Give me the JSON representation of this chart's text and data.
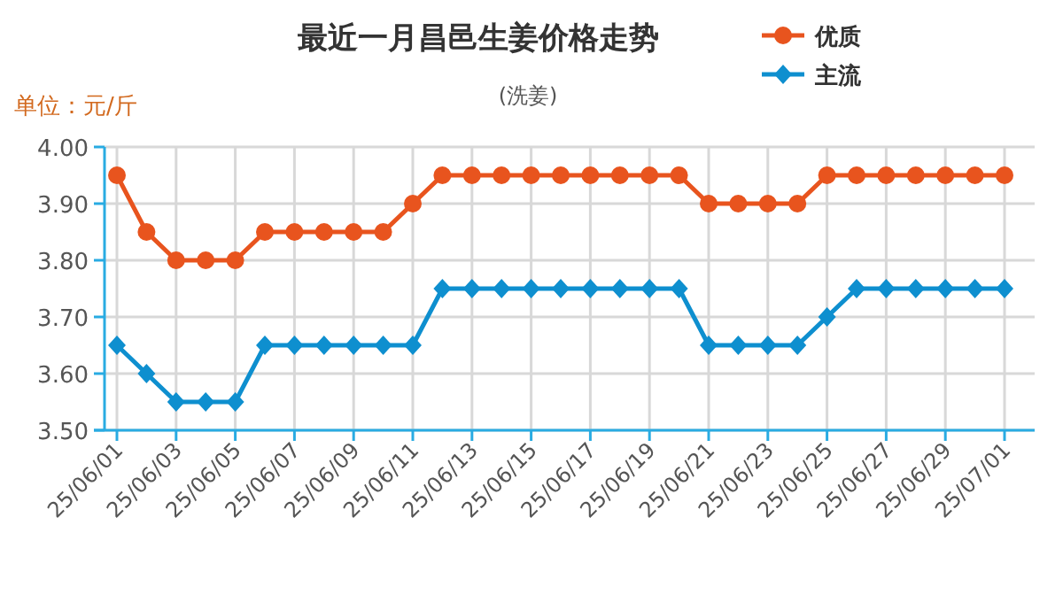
{
  "chart_data": {
    "type": "line",
    "title": "最近一月昌邑生姜价格走势",
    "subtitle": "(洗姜)",
    "annotations": [
      "单位：元/斤"
    ],
    "categories": [
      "25/06/01",
      null,
      "25/06/03",
      null,
      "25/06/05",
      null,
      "25/06/07",
      null,
      "25/06/09",
      null,
      "25/06/11",
      null,
      "25/06/13",
      null,
      "25/06/15",
      null,
      "25/06/17",
      null,
      "25/06/19",
      null,
      "25/06/21",
      null,
      "25/06/23",
      null,
      "25/06/25",
      null,
      "25/06/27",
      null,
      "25/06/29",
      null,
      "25/07/01"
    ],
    "series": [
      {
        "name": "优质",
        "color": "#e8541e",
        "marker": "circle",
        "values": [
          3.95,
          3.85,
          3.8,
          3.8,
          3.8,
          3.85,
          3.85,
          3.85,
          3.85,
          3.85,
          3.9,
          3.95,
          3.95,
          3.95,
          3.95,
          3.95,
          3.95,
          3.95,
          3.95,
          3.95,
          3.9,
          3.9,
          3.9,
          3.9,
          3.95,
          3.95,
          3.95,
          3.95,
          3.95,
          3.95,
          3.95
        ]
      },
      {
        "name": "主流",
        "color": "#0e8fcf",
        "marker": "diamond",
        "values": [
          3.65,
          3.6,
          3.55,
          3.55,
          3.55,
          3.65,
          3.65,
          3.65,
          3.65,
          3.65,
          3.65,
          3.75,
          3.75,
          3.75,
          3.75,
          3.75,
          3.75,
          3.75,
          3.75,
          3.75,
          3.65,
          3.65,
          3.65,
          3.65,
          3.7,
          3.75,
          3.75,
          3.75,
          3.75,
          3.75,
          3.75
        ]
      }
    ],
    "ylim": [
      3.5,
      4.0
    ],
    "yticks": [
      {
        "value": 3.5,
        "label": "3.50"
      },
      {
        "value": 3.6,
        "label": "3.60"
      },
      {
        "value": 3.7,
        "label": "3.70"
      },
      {
        "value": 3.8,
        "label": "3.80"
      },
      {
        "value": 3.9,
        "label": "3.90"
      },
      {
        "value": 4.0,
        "label": "4.00"
      }
    ],
    "grid": true,
    "legend": "top right"
  }
}
